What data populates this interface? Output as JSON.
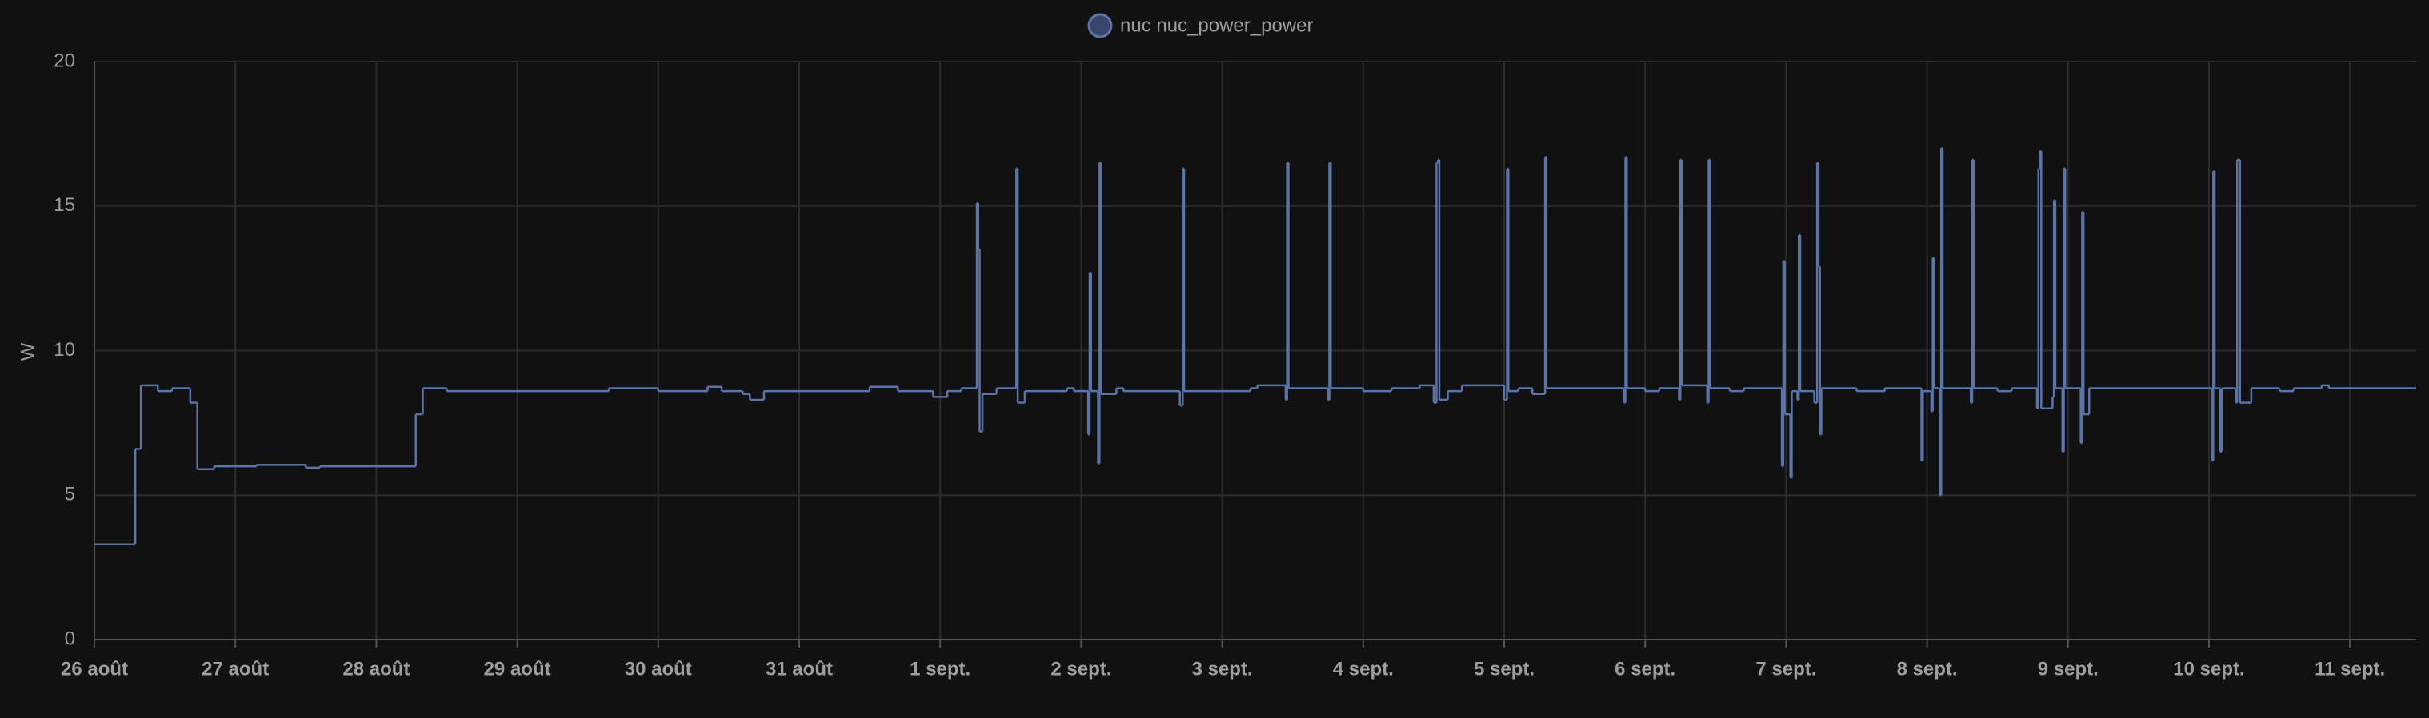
{
  "chart_data": {
    "type": "step-line",
    "y_label": "W",
    "xlim": [
      0,
      16.47
    ],
    "ylim": [
      0,
      20
    ],
    "yticks": [
      0,
      5,
      10,
      15,
      20
    ],
    "grid": true,
    "xticks": [
      {
        "value": 0,
        "label": "26 août"
      },
      {
        "value": 1,
        "label": "27 août"
      },
      {
        "value": 2,
        "label": "28 août"
      },
      {
        "value": 3,
        "label": "29 août"
      },
      {
        "value": 4,
        "label": "30 août"
      },
      {
        "value": 5,
        "label": "31 août"
      },
      {
        "value": 6,
        "label": "1 sept."
      },
      {
        "value": 7,
        "label": "2 sept."
      },
      {
        "value": 8,
        "label": "3 sept."
      },
      {
        "value": 9,
        "label": "4 sept."
      },
      {
        "value": 10,
        "label": "5 sept."
      },
      {
        "value": 11,
        "label": "6 sept."
      },
      {
        "value": 12,
        "label": "7 sept."
      },
      {
        "value": 13,
        "label": "8 sept."
      },
      {
        "value": 14,
        "label": "9 sept."
      },
      {
        "value": 15,
        "label": "10 sept."
      },
      {
        "value": 16,
        "label": "11 sept."
      }
    ],
    "x": [
      0,
      0.29,
      0.33,
      0.45,
      0.55,
      0.68,
      0.73,
      0.85,
      1.15,
      1.5,
      1.6,
      2.28,
      2.33,
      2.5,
      3.65,
      4.0,
      4.35,
      4.45,
      4.6,
      4.65,
      4.75,
      5.5,
      5.7,
      5.95,
      6.05,
      6.15,
      6.26,
      6.27,
      6.28,
      6.3,
      6.4,
      6.54,
      6.55,
      6.6,
      6.9,
      6.95,
      7.05,
      7.06,
      7.07,
      7.12,
      7.13,
      7.14,
      7.25,
      7.3,
      7.7,
      7.72,
      7.73,
      8.2,
      8.25,
      8.45,
      8.46,
      8.47,
      8.75,
      8.76,
      8.77,
      9.0,
      9.2,
      9.4,
      9.5,
      9.52,
      9.53,
      9.54,
      9.6,
      9.7,
      10.0,
      10.02,
      10.03,
      10.1,
      10.2,
      10.29,
      10.3,
      10.85,
      10.86,
      10.87,
      11.0,
      11.1,
      11.24,
      11.25,
      11.26,
      11.44,
      11.45,
      11.46,
      11.6,
      11.7,
      11.97,
      11.98,
      11.99,
      12.03,
      12.04,
      12.08,
      12.09,
      12.1,
      12.2,
      12.22,
      12.23,
      12.24,
      12.25,
      12.5,
      12.7,
      12.96,
      12.97,
      13.03,
      13.04,
      13.05,
      13.09,
      13.1,
      13.11,
      13.31,
      13.32,
      13.33,
      13.5,
      13.6,
      13.78,
      13.79,
      13.8,
      13.81,
      13.89,
      13.9,
      13.91,
      13.96,
      13.97,
      13.98,
      14.09,
      14.1,
      14.11,
      14.15,
      15.02,
      15.03,
      15.04,
      15.08,
      15.09,
      15.19,
      15.2,
      15.21,
      15.22,
      15.3,
      15.5,
      15.6,
      15.8,
      15.85,
      16.44
    ],
    "series": [
      {
        "name": "nuc nuc_power_power",
        "color": "#5b75a8",
        "values": [
          3.3,
          6.6,
          8.8,
          8.6,
          8.7,
          8.2,
          5.9,
          6.0,
          6.05,
          5.95,
          6.0,
          7.8,
          8.7,
          8.6,
          8.7,
          8.6,
          8.75,
          8.6,
          8.5,
          8.3,
          8.6,
          8.75,
          8.6,
          8.4,
          8.6,
          8.7,
          15.1,
          13.5,
          7.2,
          8.5,
          8.7,
          16.3,
          8.2,
          8.6,
          8.7,
          8.6,
          7.1,
          12.7,
          8.6,
          6.1,
          16.5,
          8.5,
          8.7,
          8.6,
          8.1,
          16.3,
          8.6,
          8.7,
          8.8,
          8.3,
          16.5,
          8.7,
          8.3,
          16.5,
          8.7,
          8.6,
          8.7,
          8.8,
          8.2,
          16.5,
          16.6,
          8.3,
          8.6,
          8.8,
          8.3,
          16.3,
          8.6,
          8.7,
          8.5,
          16.7,
          8.7,
          8.2,
          16.7,
          8.7,
          8.6,
          8.7,
          8.3,
          16.6,
          8.8,
          8.2,
          16.6,
          8.7,
          8.6,
          8.7,
          6.0,
          13.1,
          7.8,
          5.6,
          8.6,
          8.3,
          14.0,
          8.6,
          8.2,
          16.5,
          12.9,
          7.1,
          8.7,
          8.6,
          8.7,
          6.2,
          8.6,
          7.9,
          13.2,
          8.7,
          5.0,
          17.0,
          8.7,
          8.2,
          16.6,
          8.7,
          8.6,
          8.7,
          8.0,
          16.3,
          16.9,
          8.0,
          8.4,
          15.2,
          8.7,
          6.5,
          16.3,
          8.7,
          6.8,
          14.8,
          7.8,
          8.7,
          6.2,
          16.2,
          8.7,
          6.5,
          8.7,
          8.2,
          16.6,
          16.6,
          8.2,
          8.7,
          8.6,
          8.7,
          8.8,
          8.7,
          8.7
        ]
      }
    ]
  }
}
